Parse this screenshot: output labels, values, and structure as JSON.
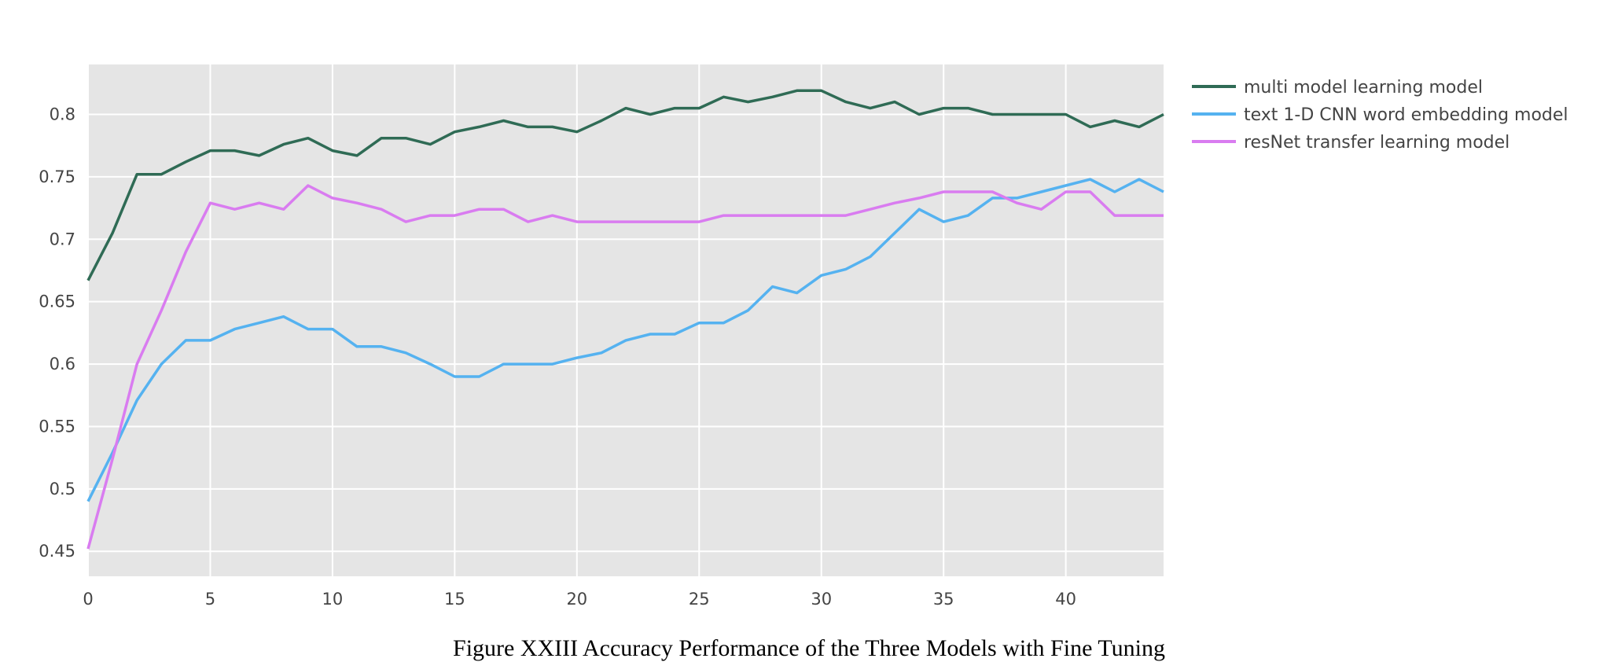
{
  "caption": "Figure XXIII Accuracy Performance of the Three Models with Fine Tuning",
  "chart_data": {
    "type": "line",
    "title": "",
    "xlabel": "",
    "ylabel": "",
    "xlim": [
      0,
      44
    ],
    "ylim": [
      0.43,
      0.84
    ],
    "x_ticks": [
      0,
      5,
      10,
      15,
      20,
      25,
      30,
      35,
      40
    ],
    "x_tick_labels": [
      "0",
      "5",
      "10",
      "15",
      "20",
      "25",
      "30",
      "35",
      "40"
    ],
    "y_ticks": [
      0.45,
      0.5,
      0.55,
      0.6,
      0.65,
      0.7,
      0.75,
      0.8
    ],
    "y_tick_labels": [
      "0.45",
      "0.5",
      "0.55",
      "0.6",
      "0.65",
      "0.7",
      "0.75",
      "0.8"
    ],
    "grid": true,
    "legend_position": "top-right",
    "plot_background": "#e5e5e5",
    "x": [
      0,
      1,
      2,
      3,
      4,
      5,
      6,
      7,
      8,
      9,
      10,
      11,
      12,
      13,
      14,
      15,
      16,
      17,
      18,
      19,
      20,
      21,
      22,
      23,
      24,
      25,
      26,
      27,
      28,
      29,
      30,
      31,
      32,
      33,
      34,
      35,
      36,
      37,
      38,
      39,
      40,
      41,
      42,
      43,
      44
    ],
    "series": [
      {
        "name": "multi model learning model",
        "color": "#2f6b55",
        "values": [
          0.667,
          0.705,
          0.752,
          0.752,
          0.762,
          0.771,
          0.771,
          0.767,
          0.776,
          0.781,
          0.771,
          0.767,
          0.781,
          0.781,
          0.776,
          0.786,
          0.79,
          0.795,
          0.79,
          0.79,
          0.786,
          0.795,
          0.805,
          0.8,
          0.805,
          0.805,
          0.814,
          0.81,
          0.814,
          0.819,
          0.819,
          0.81,
          0.805,
          0.81,
          0.8,
          0.805,
          0.805,
          0.8,
          0.8,
          0.8,
          0.8,
          0.79,
          0.795,
          0.79,
          0.8
        ]
      },
      {
        "name": "text 1-D CNN word embedding model",
        "color": "#55b2f0",
        "values": [
          0.49,
          0.529,
          0.571,
          0.6,
          0.619,
          0.619,
          0.628,
          0.633,
          0.638,
          0.628,
          0.628,
          0.614,
          0.614,
          0.609,
          0.6,
          0.59,
          0.59,
          0.6,
          0.6,
          0.6,
          0.605,
          0.609,
          0.619,
          0.624,
          0.624,
          0.633,
          0.633,
          0.643,
          0.662,
          0.657,
          0.671,
          0.676,
          0.686,
          0.705,
          0.724,
          0.714,
          0.719,
          0.733,
          0.733,
          0.738,
          0.743,
          0.748,
          0.738,
          0.748,
          0.738
        ]
      },
      {
        "name": "resNet transfer learning model",
        "color": "#d97cf0",
        "values": [
          0.452,
          0.524,
          0.6,
          0.643,
          0.69,
          0.729,
          0.724,
          0.729,
          0.724,
          0.743,
          0.733,
          0.729,
          0.724,
          0.714,
          0.719,
          0.719,
          0.724,
          0.724,
          0.714,
          0.719,
          0.714,
          0.714,
          0.714,
          0.714,
          0.714,
          0.714,
          0.719,
          0.719,
          0.719,
          0.719,
          0.719,
          0.719,
          0.724,
          0.729,
          0.733,
          0.738,
          0.738,
          0.738,
          0.729,
          0.724,
          0.738,
          0.738,
          0.719,
          0.719,
          0.719
        ]
      }
    ]
  }
}
